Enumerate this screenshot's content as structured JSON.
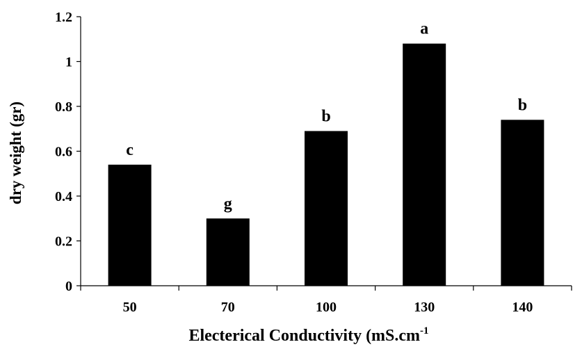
{
  "chart_data": {
    "type": "bar",
    "title": "",
    "xlabel": "Electerical Conductivity (mS.cm",
    "xlabel_superscript": "-1",
    "ylabel": "dry weight (gr)",
    "categories": [
      "50",
      "70",
      "100",
      "130",
      "140"
    ],
    "values": [
      0.54,
      0.3,
      0.69,
      1.08,
      0.74
    ],
    "bar_labels": [
      "c",
      "g",
      "b",
      "a",
      "b"
    ],
    "ylim": [
      0,
      1.2
    ],
    "yticks": [
      0,
      0.2,
      0.4,
      0.6,
      0.8,
      1,
      1.2
    ],
    "ytick_labels": [
      "0",
      "0.2",
      "0.4",
      "0.6",
      "0.8",
      "1",
      "1.2"
    ],
    "grid": false,
    "legend": "none",
    "bar_color": "#000000"
  }
}
